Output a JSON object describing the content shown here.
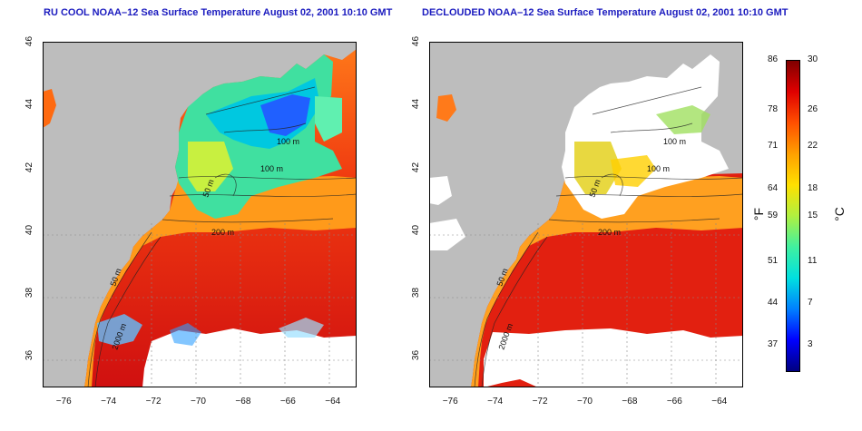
{
  "panels": [
    {
      "id": "left",
      "title": "RU COOL NOAA–12 Sea Surface Temperature August 02, 2001 10:10 GMT"
    },
    {
      "id": "right",
      "title": "DECLOUDED NOAA–12 Sea Surface Temperature August 02, 2001 10:10 GMT"
    }
  ],
  "axes": {
    "lon_ticks": [
      "−76",
      "−74",
      "−72",
      "−70",
      "−68",
      "−66",
      "−64"
    ],
    "lat_ticks": [
      "36",
      "38",
      "40",
      "42",
      "44",
      "46"
    ],
    "lon_range": [
      -77,
      -63
    ],
    "lat_range": [
      35,
      46
    ]
  },
  "contour_labels": [
    "100 m",
    "100 m",
    "50 m",
    "200 m",
    "50 m",
    "2000 m"
  ],
  "colorbar": {
    "fahrenheit_ticks": [
      "86",
      "78",
      "71",
      "64",
      "59",
      "51",
      "44",
      "37"
    ],
    "celsius_ticks": [
      "30",
      "26",
      "22",
      "18",
      "15",
      "11",
      "7",
      "3"
    ],
    "fahrenheit_unit": "°F",
    "celsius_unit": "°C",
    "colors": [
      "#00007f",
      "#0000ff",
      "#0080ff",
      "#00e0e0",
      "#40f0a0",
      "#b0f040",
      "#ffe000",
      "#ffa000",
      "#ff5000",
      "#e00000",
      "#800000"
    ]
  },
  "colors": {
    "land": "#bdbdbd",
    "cloud": "#ffffff",
    "title": "#1b1bbf"
  }
}
